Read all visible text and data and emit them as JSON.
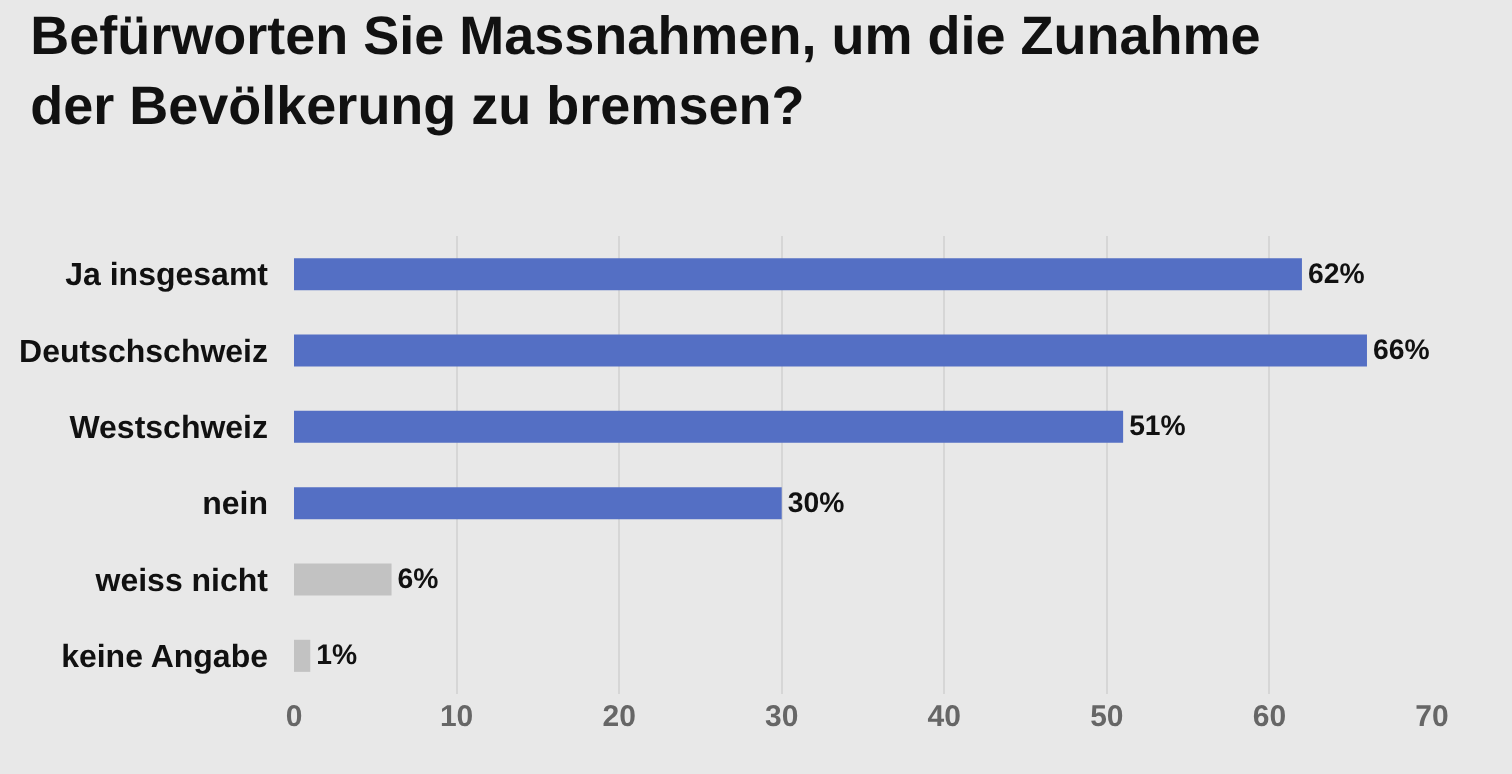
{
  "chart_data": {
    "type": "bar",
    "orientation": "horizontal",
    "title": "Befürworten Sie Massnahmen, um die Zunahme der Bevölkerung zu bremsen?",
    "categories": [
      "Ja insgesamt",
      "Deutschschweiz",
      "Westschweiz",
      "nein",
      "weiss nicht",
      "keine Angabe"
    ],
    "values": [
      62,
      66,
      51,
      30,
      6,
      1
    ],
    "colors": [
      "#546fc4",
      "#546fc4",
      "#546fc4",
      "#546fc4",
      "#c2c2c2",
      "#c2c2c2"
    ],
    "value_labels": [
      "62%",
      "66%",
      "51%",
      "30%",
      "6%",
      "1%"
    ],
    "xlim": [
      0,
      70
    ],
    "xticks": [
      0,
      10,
      20,
      30,
      40,
      50,
      60,
      70
    ],
    "grid": "x",
    "legend": false
  }
}
